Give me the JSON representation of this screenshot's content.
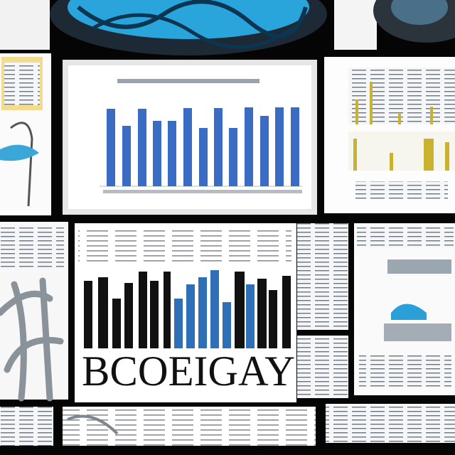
{
  "headline": "BCOEIGAY"
}
